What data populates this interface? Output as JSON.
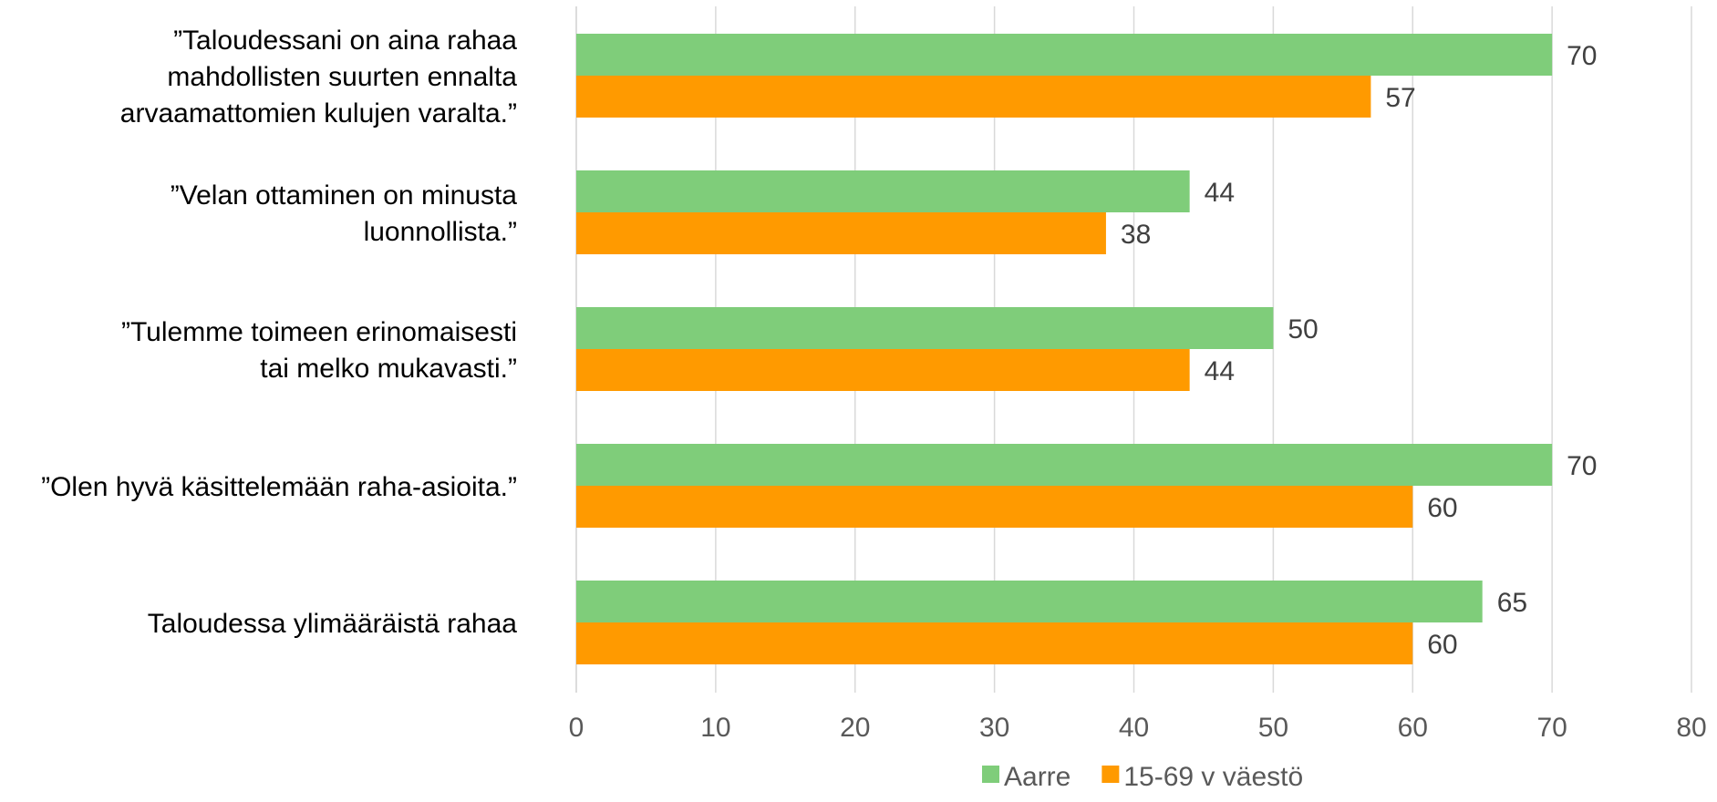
{
  "chart_data": {
    "type": "bar",
    "orientation": "horizontal",
    "categories": [
      [
        "”Taloudessani on aina rahaa",
        "mahdollisten suurten ennalta",
        "arvaamattomien kulujen varalta.”"
      ],
      [
        "”Velan ottaminen on minusta",
        "luonnollista.”"
      ],
      [
        "”Tulemme toimeen erinomaisesti",
        "tai melko mukavasti.”"
      ],
      [
        "”Olen hyvä käsittelemään raha-asioita.”"
      ],
      [
        "Taloudessa ylimääräistä rahaa"
      ]
    ],
    "series": [
      {
        "name": "Aarre",
        "color": "#7fcd7a",
        "values": [
          70,
          44,
          50,
          70,
          65
        ]
      },
      {
        "name": "15-69 v väestö",
        "color": "#ff9a00",
        "values": [
          57,
          38,
          44,
          60,
          60
        ]
      }
    ],
    "xlim": [
      0,
      80
    ],
    "xticks": [
      0,
      10,
      20,
      30,
      40,
      50,
      60,
      70,
      80
    ],
    "grid": true,
    "legend_position": "bottom",
    "data_labels": true
  }
}
